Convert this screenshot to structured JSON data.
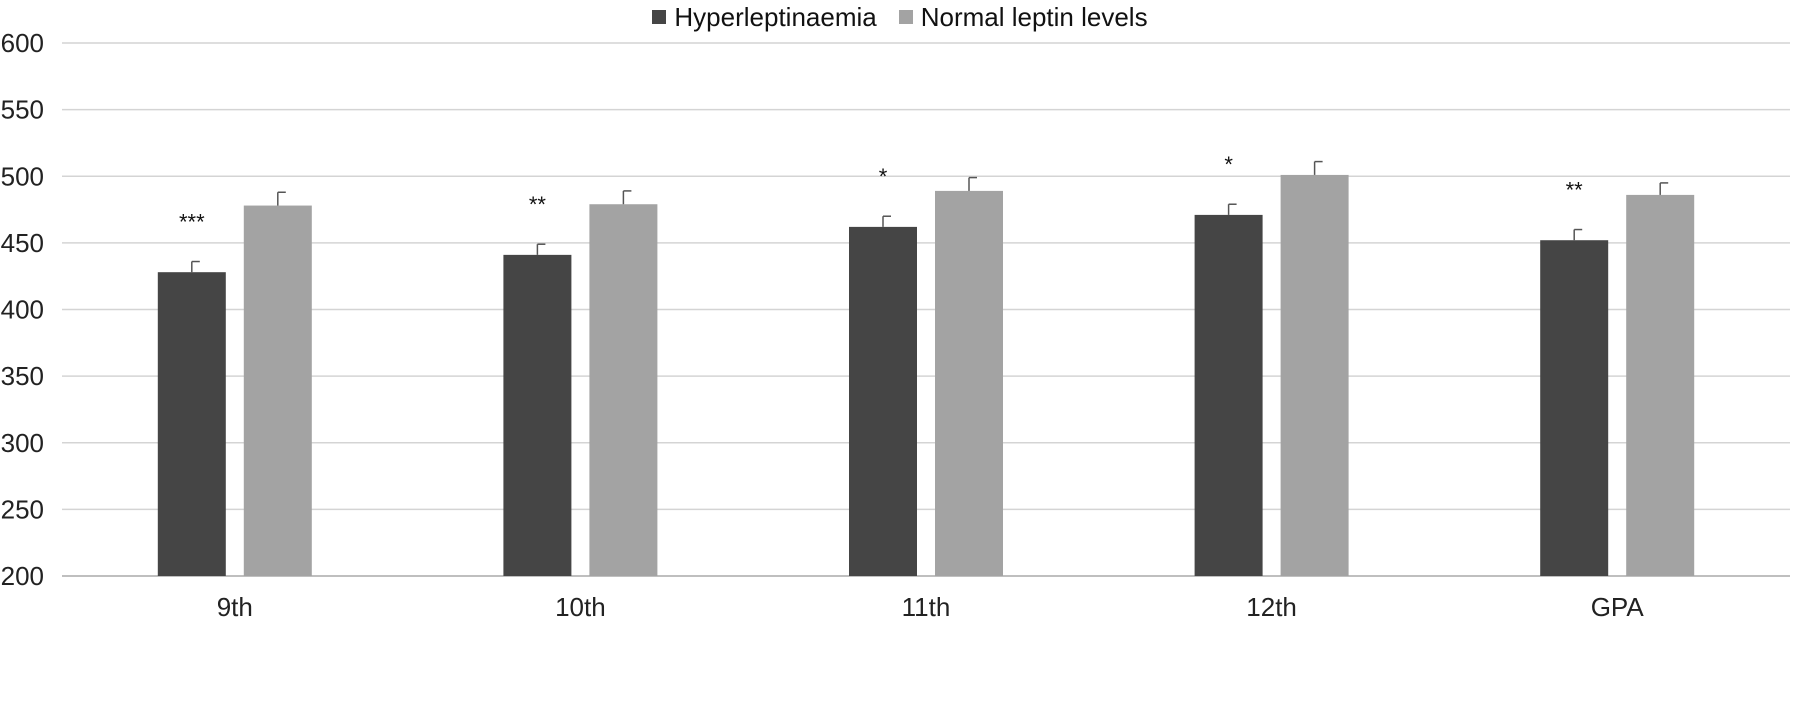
{
  "chart_data": {
    "type": "bar",
    "categories": [
      "9th",
      "10th",
      "11th",
      "12th",
      "GPA"
    ],
    "series": [
      {
        "name": "Hyperleptinaemia",
        "color": "#454545",
        "values": [
          428,
          441,
          462,
          471,
          452
        ],
        "errors": [
          8,
          8,
          8,
          8,
          8
        ]
      },
      {
        "name": "Normal leptin levels",
        "color": "#a3a3a3",
        "values": [
          478,
          479,
          489,
          501,
          486
        ],
        "errors": [
          10,
          10,
          10,
          10,
          9
        ]
      }
    ],
    "annotations": [
      "***",
      "**",
      "*",
      "*",
      "**"
    ],
    "ylim": [
      200,
      600
    ],
    "yticks": [
      "200",
      "250",
      "300",
      "350",
      "400",
      "450",
      "500",
      "550",
      "600"
    ],
    "grid": true,
    "legend": "top-center",
    "xlabel": "",
    "ylabel": "",
    "title": ""
  }
}
